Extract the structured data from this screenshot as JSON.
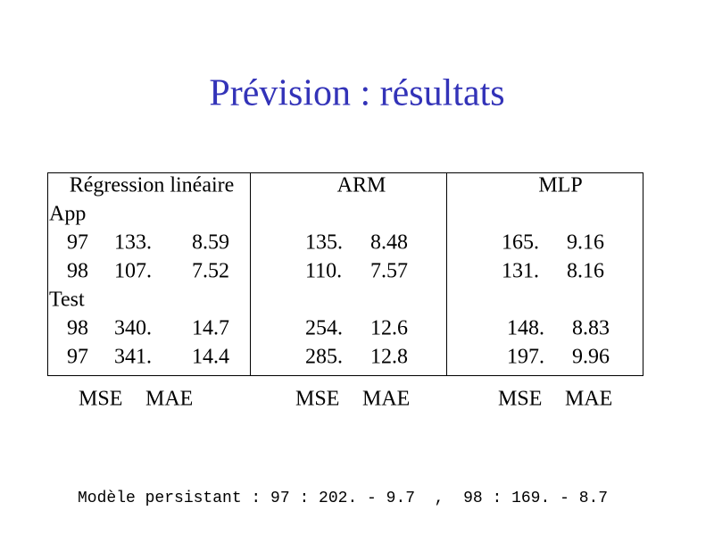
{
  "title": "Prévision : résultats",
  "table": {
    "headers": [
      "Régression linéaire",
      "ARM",
      "MLP"
    ],
    "groups": [
      {
        "label": "App",
        "rows": [
          {
            "year": "97",
            "cells": [
              [
                "133.",
                "8.59"
              ],
              [
                "135.",
                "8.48"
              ],
              [
                "165.",
                "9.16"
              ]
            ]
          },
          {
            "year": "98",
            "cells": [
              [
                "107.",
                "7.52"
              ],
              [
                "110.",
                "7.57"
              ],
              [
                "131.",
                "8.16"
              ]
            ]
          }
        ]
      },
      {
        "label": "Test",
        "rows": [
          {
            "year": "98",
            "cells": [
              [
                "340.",
                "14.7"
              ],
              [
                "254.",
                "12.6"
              ],
              [
                "148.",
                "8.83"
              ]
            ]
          },
          {
            "year": "97",
            "cells": [
              [
                "341.",
                "14.4"
              ],
              [
                "285.",
                "12.8"
              ],
              [
                "197.",
                "9.96"
              ]
            ]
          }
        ]
      }
    ],
    "column_footers": [
      [
        "MSE",
        "MAE"
      ],
      [
        "MSE",
        "MAE"
      ],
      [
        "MSE",
        "MAE"
      ]
    ]
  },
  "footer": "Modèle persistant : 97 : 202. - 9.7  ,  98 : 169. - 8.7"
}
